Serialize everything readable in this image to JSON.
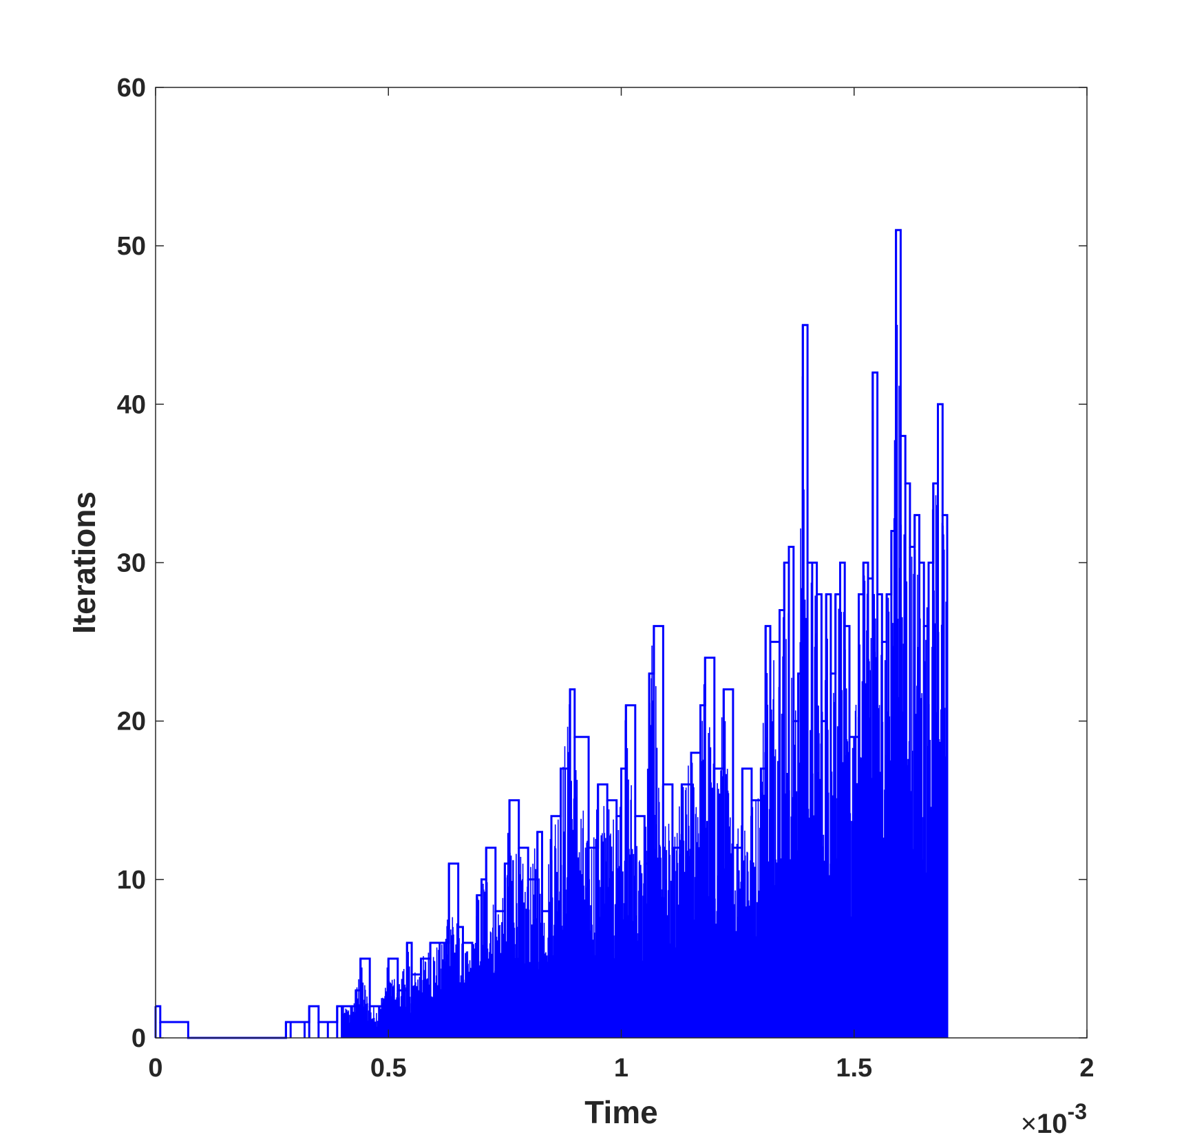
{
  "chart_data": {
    "type": "line",
    "title": "",
    "xlabel": "Time",
    "ylabel": "Iterations",
    "x_multiplier_label": {
      "times": "×",
      "base": "10",
      "exponent": "-3"
    },
    "xlim": [
      0,
      0.002
    ],
    "ylim": [
      0,
      60
    ],
    "xticks": [
      0,
      0.0005,
      0.001,
      0.0015,
      0.002
    ],
    "xtick_labels": [
      "0",
      "0.5",
      "1",
      "1.5",
      "2"
    ],
    "yticks": [
      0,
      10,
      20,
      30,
      40,
      50,
      60
    ],
    "ytick_labels": [
      "0",
      "10",
      "20",
      "30",
      "40",
      "50",
      "60"
    ],
    "grid": false,
    "legend": "none",
    "colors": {
      "series": "#0000ff",
      "axes": "#262626",
      "background": "#ffffff"
    },
    "series": [
      {
        "style": "stairs",
        "x_end": 0.0017,
        "points": [
          [
            0,
            2
          ],
          [
            1e-05,
            1
          ],
          [
            7e-05,
            0
          ],
          [
            0.00028,
            1
          ],
          [
            0.00029,
            1
          ],
          [
            0.00032,
            1
          ],
          [
            0.00033,
            2
          ],
          [
            0.00035,
            1
          ],
          [
            0.00037,
            1
          ],
          [
            0.00039,
            2
          ],
          [
            0.0004,
            2
          ],
          [
            0.00042,
            2
          ],
          [
            0.00043,
            3
          ],
          [
            0.00044,
            5
          ],
          [
            0.00046,
            2
          ],
          [
            0.00048,
            2
          ],
          [
            0.0005,
            5
          ],
          [
            0.00052,
            3
          ],
          [
            0.00054,
            6
          ],
          [
            0.00055,
            4
          ],
          [
            0.00057,
            5
          ],
          [
            0.00059,
            6
          ],
          [
            0.00061,
            6
          ],
          [
            0.00062,
            6
          ],
          [
            0.00063,
            11
          ],
          [
            0.00065,
            7
          ],
          [
            0.00066,
            6
          ],
          [
            0.00068,
            5
          ],
          [
            0.00069,
            9
          ],
          [
            0.0007,
            10
          ],
          [
            0.00071,
            12
          ],
          [
            0.00073,
            8
          ],
          [
            0.00075,
            11
          ],
          [
            0.00076,
            15
          ],
          [
            0.00078,
            12
          ],
          [
            0.0008,
            10
          ],
          [
            0.00082,
            13
          ],
          [
            0.00083,
            8
          ],
          [
            0.00085,
            14
          ],
          [
            0.00087,
            17
          ],
          [
            0.00089,
            22
          ],
          [
            0.0009,
            19
          ],
          [
            0.00093,
            12
          ],
          [
            0.00095,
            16
          ],
          [
            0.00097,
            15
          ],
          [
            0.00099,
            14
          ],
          [
            0.001,
            17
          ],
          [
            0.00101,
            21
          ],
          [
            0.00103,
            14
          ],
          [
            0.00105,
            11
          ],
          [
            0.00106,
            23
          ],
          [
            0.00107,
            26
          ],
          [
            0.00109,
            16
          ],
          [
            0.00111,
            12
          ],
          [
            0.00113,
            16
          ],
          [
            0.00115,
            18
          ],
          [
            0.00117,
            21
          ],
          [
            0.00118,
            24
          ],
          [
            0.0012,
            17
          ],
          [
            0.00122,
            22
          ],
          [
            0.00124,
            12
          ],
          [
            0.00126,
            17
          ],
          [
            0.00128,
            15
          ],
          [
            0.0013,
            17
          ],
          [
            0.00131,
            26
          ],
          [
            0.00132,
            25
          ],
          [
            0.00134,
            27
          ],
          [
            0.00135,
            30
          ],
          [
            0.00136,
            31
          ],
          [
            0.00137,
            20
          ],
          [
            0.00138,
            23
          ],
          [
            0.00139,
            45
          ],
          [
            0.0014,
            30
          ],
          [
            0.00141,
            30
          ],
          [
            0.00142,
            28
          ],
          [
            0.00143,
            20
          ],
          [
            0.00144,
            28
          ],
          [
            0.00145,
            23
          ],
          [
            0.00146,
            28
          ],
          [
            0.00147,
            30
          ],
          [
            0.00148,
            26
          ],
          [
            0.00149,
            19
          ],
          [
            0.0015,
            19
          ],
          [
            0.00151,
            28
          ],
          [
            0.00152,
            30
          ],
          [
            0.00153,
            29
          ],
          [
            0.00154,
            42
          ],
          [
            0.00155,
            28
          ],
          [
            0.00156,
            25
          ],
          [
            0.00157,
            28
          ],
          [
            0.00158,
            32
          ],
          [
            0.00159,
            51
          ],
          [
            0.0016,
            38
          ],
          [
            0.00161,
            35
          ],
          [
            0.00162,
            31
          ],
          [
            0.00163,
            33
          ],
          [
            0.00164,
            30
          ],
          [
            0.00165,
            26
          ],
          [
            0.00166,
            30
          ],
          [
            0.00167,
            35
          ],
          [
            0.00168,
            40
          ],
          [
            0.00169,
            33
          ]
        ]
      }
    ]
  }
}
